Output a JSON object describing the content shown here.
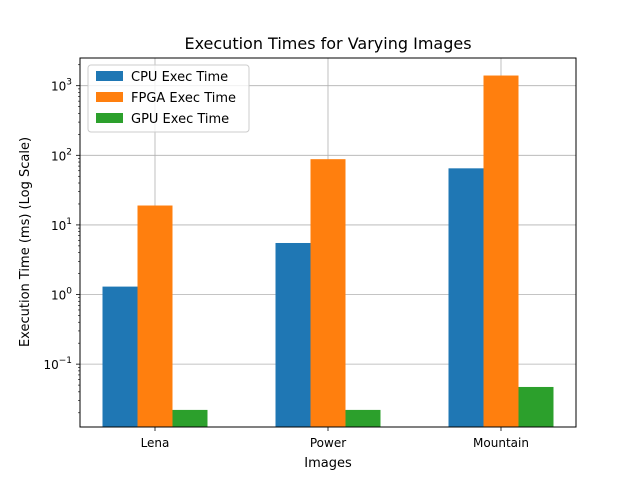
{
  "chart_data": {
    "type": "bar",
    "title": "Execution Times for Varying Images",
    "xlabel": "Images",
    "ylabel": "Execution Time (ms) (Log Scale)",
    "yscale": "log",
    "ylim": [
      0.0125,
      2500
    ],
    "categories": [
      "Lena",
      "Power",
      "Mountain"
    ],
    "series": [
      {
        "name": "CPU Exec Time",
        "color": "#1f77b4",
        "values": [
          1.3,
          5.5,
          65
        ]
      },
      {
        "name": "FPGA Exec Time",
        "color": "#ff7f0e",
        "values": [
          19,
          88,
          1400
        ]
      },
      {
        "name": "GPU Exec Time",
        "color": "#2ca02c",
        "values": [
          0.022,
          0.022,
          0.047
        ]
      }
    ],
    "y_ticks": [
      {
        "value": 0.1,
        "base": "10",
        "exp": "−1"
      },
      {
        "value": 1,
        "base": "10",
        "exp": "0"
      },
      {
        "value": 10,
        "base": "10",
        "exp": "1"
      },
      {
        "value": 100,
        "base": "10",
        "exp": "2"
      },
      {
        "value": 1000,
        "base": "10",
        "exp": "3"
      }
    ],
    "grid": true,
    "legend_position": "upper-left"
  }
}
